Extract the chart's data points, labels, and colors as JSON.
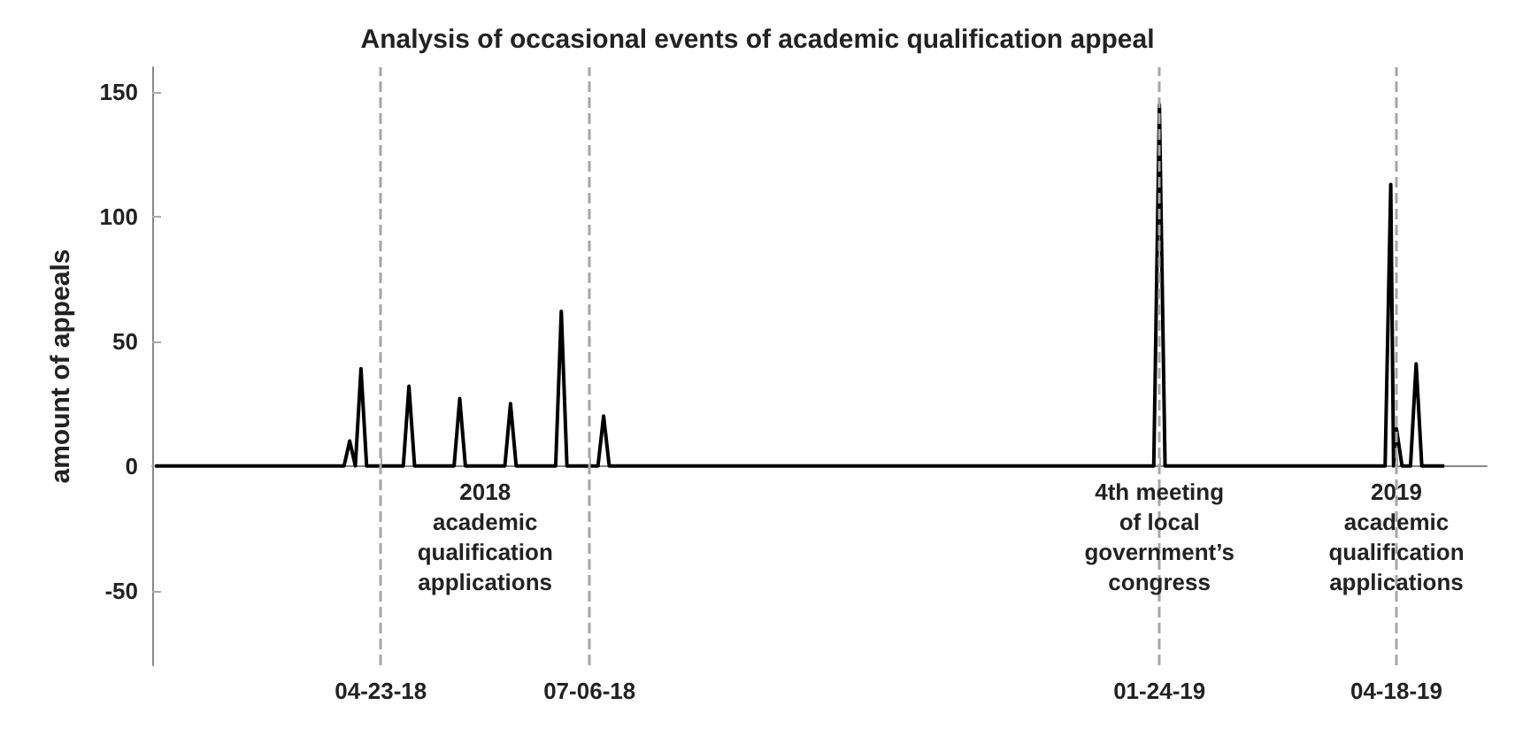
{
  "chart_data": {
    "type": "line",
    "title": "Analysis of occasional events of academic qualification appeal",
    "ylabel": "amount of appeals",
    "xlim": [
      "2018-02-01",
      "2019-05-20"
    ],
    "xticks": [
      {
        "value": "2018-04-23",
        "label": "04-23-18"
      },
      {
        "value": "2018-07-06",
        "label": "07-06-18"
      },
      {
        "value": "2019-01-24",
        "label": "01-24-19"
      },
      {
        "value": "2019-04-18",
        "label": "04-18-19"
      }
    ],
    "ylim": [
      -80,
      160
    ],
    "yticks": [
      -50,
      0,
      50,
      100,
      150
    ],
    "series": [
      {
        "color": "#000000",
        "x": [
          "2018-02-02",
          "2018-04-10",
          "2018-04-12",
          "2018-04-14",
          "2018-04-16",
          "2018-04-18",
          "2018-05-01",
          "2018-05-03",
          "2018-05-05",
          "2018-05-19",
          "2018-05-21",
          "2018-05-23",
          "2018-06-06",
          "2018-06-08",
          "2018-06-10",
          "2018-06-24",
          "2018-06-26",
          "2018-06-28",
          "2018-07-09",
          "2018-07-11",
          "2018-07-13",
          "2019-01-22",
          "2019-01-24",
          "2019-01-26",
          "2019-04-14",
          "2019-04-16",
          "2019-04-17",
          "2019-04-18",
          "2019-04-20",
          "2019-04-23",
          "2019-04-25",
          "2019-04-27",
          "2019-05-05"
        ],
        "values": [
          0,
          0,
          10,
          0,
          39,
          0,
          0,
          32,
          0,
          0,
          27,
          0,
          0,
          25,
          0,
          0,
          62,
          0,
          0,
          20,
          0,
          0,
          145,
          0,
          0,
          113,
          0,
          15,
          0,
          0,
          41,
          0,
          0
        ]
      }
    ],
    "ref_lines": [
      {
        "axis": "x",
        "value": "2018-04-23",
        "color": "#a6a6a6",
        "line_style": "dashed"
      },
      {
        "axis": "x",
        "value": "2018-07-06",
        "color": "#a6a6a6",
        "line_style": "dashed"
      },
      {
        "axis": "x",
        "value": "2019-01-24",
        "color": "#a6a6a6",
        "line_style": "dashed"
      },
      {
        "axis": "x",
        "value": "2019-04-18",
        "color": "#a6a6a6",
        "line_style": "dashed"
      }
    ],
    "annotations": [
      {
        "text": "2018\nacademic\nqualification\napplications",
        "x": "2018-05-30",
        "y": -3
      },
      {
        "text": "4th meeting\nof local\ngovernment’s\ncongress",
        "x": "2019-01-24",
        "y": -3
      },
      {
        "text": "2019\nacademic\nqualification\napplications",
        "x": "2019-04-18",
        "y": -3
      }
    ]
  }
}
